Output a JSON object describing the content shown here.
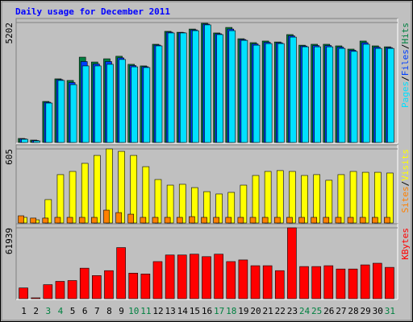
{
  "chart_data": [
    {
      "type": "bar",
      "title": "Daily usage for December 2011",
      "categories": [
        "1",
        "2",
        "3",
        "4",
        "5",
        "6",
        "7",
        "8",
        "9",
        "10",
        "11",
        "12",
        "13",
        "14",
        "15",
        "16",
        "17",
        "18",
        "19",
        "20",
        "21",
        "22",
        "23",
        "24",
        "25",
        "26",
        "27",
        "28",
        "29",
        "30",
        "31"
      ],
      "category_colors": [
        "#000000",
        "#000000",
        "#008040",
        "#008040",
        "#000000",
        "#000000",
        "#000000",
        "#000000",
        "#000000",
        "#008040",
        "#008040",
        "#000000",
        "#000000",
        "#000000",
        "#000000",
        "#000000",
        "#008040",
        "#008040",
        "#000000",
        "#000000",
        "#000000",
        "#000000",
        "#000000",
        "#008040",
        "#008040",
        "#000000",
        "#000000",
        "#000000",
        "#000000",
        "#000000",
        "#008040"
      ],
      "legend_separator": "/",
      "ylim": [
        0,
        5202
      ],
      "yticks": [
        5202
      ],
      "series": [
        {
          "name": "Hits",
          "color": "#008040",
          "values": [
            175,
            105,
            1780,
            2760,
            2690,
            3700,
            3490,
            3630,
            3740,
            3390,
            3320,
            4260,
            4820,
            4780,
            4920,
            5170,
            4750,
            4990,
            4500,
            4330,
            4400,
            4360,
            4680,
            4220,
            4260,
            4260,
            4190,
            4050,
            4400,
            4190,
            4150
          ]
        },
        {
          "name": "Files",
          "color": "#0040ff",
          "values": [
            158,
            88,
            1745,
            2725,
            2600,
            3510,
            3405,
            3510,
            3670,
            3335,
            3285,
            4225,
            4785,
            4765,
            4885,
            5135,
            4715,
            4920,
            4465,
            4275,
            4345,
            4325,
            4625,
            4185,
            4205,
            4205,
            4135,
            4000,
            4330,
            4135,
            4115
          ]
        },
        {
          "name": "Pages",
          "color": "#00e0ff",
          "values": [
            140,
            70,
            1710,
            2690,
            2510,
            3320,
            3320,
            3390,
            3600,
            3280,
            3250,
            4190,
            4750,
            4750,
            4850,
            5100,
            4680,
            4850,
            4430,
            4220,
            4290,
            4290,
            4570,
            4150,
            4150,
            4150,
            4080,
            3950,
            4260,
            4080,
            4080
          ]
        }
      ]
    },
    {
      "type": "bar",
      "legend_separator": "/",
      "ylim": [
        0,
        605
      ],
      "yticks": [
        605
      ],
      "series": [
        {
          "name": "Visits",
          "color": "#ffff00",
          "values": [
            46,
            26,
            191,
            395,
            421,
            487,
            552,
            605,
            585,
            552,
            460,
            355,
            309,
            316,
            289,
            256,
            237,
            250,
            309,
            388,
            421,
            428,
            421,
            388,
            395,
            349,
            395,
            421,
            414,
            414,
            408
          ]
        },
        {
          "name": "Sites",
          "color": "#ff8000",
          "values": [
            59,
            40,
            40,
            46,
            46,
            46,
            46,
            105,
            85,
            72,
            46,
            46,
            46,
            46,
            52,
            46,
            46,
            46,
            46,
            46,
            46,
            46,
            46,
            46,
            46,
            46,
            46,
            46,
            46,
            46,
            46
          ]
        }
      ]
    },
    {
      "type": "bar",
      "ylim": [
        0,
        61939
      ],
      "yticks": [
        61939
      ],
      "series": [
        {
          "name": "KBytes",
          "color": "#ff0000",
          "values": [
            9363,
            720,
            12244,
            15125,
            15845,
            26648,
            20166,
            24487,
            44652,
            22327,
            21607,
            32410,
            38172,
            38172,
            38892,
            36731,
            38892,
            32410,
            33850,
            28808,
            28808,
            24487,
            61939,
            28088,
            28088,
            28808,
            25928,
            25928,
            29529,
            30969,
            27368
          ]
        }
      ]
    }
  ]
}
